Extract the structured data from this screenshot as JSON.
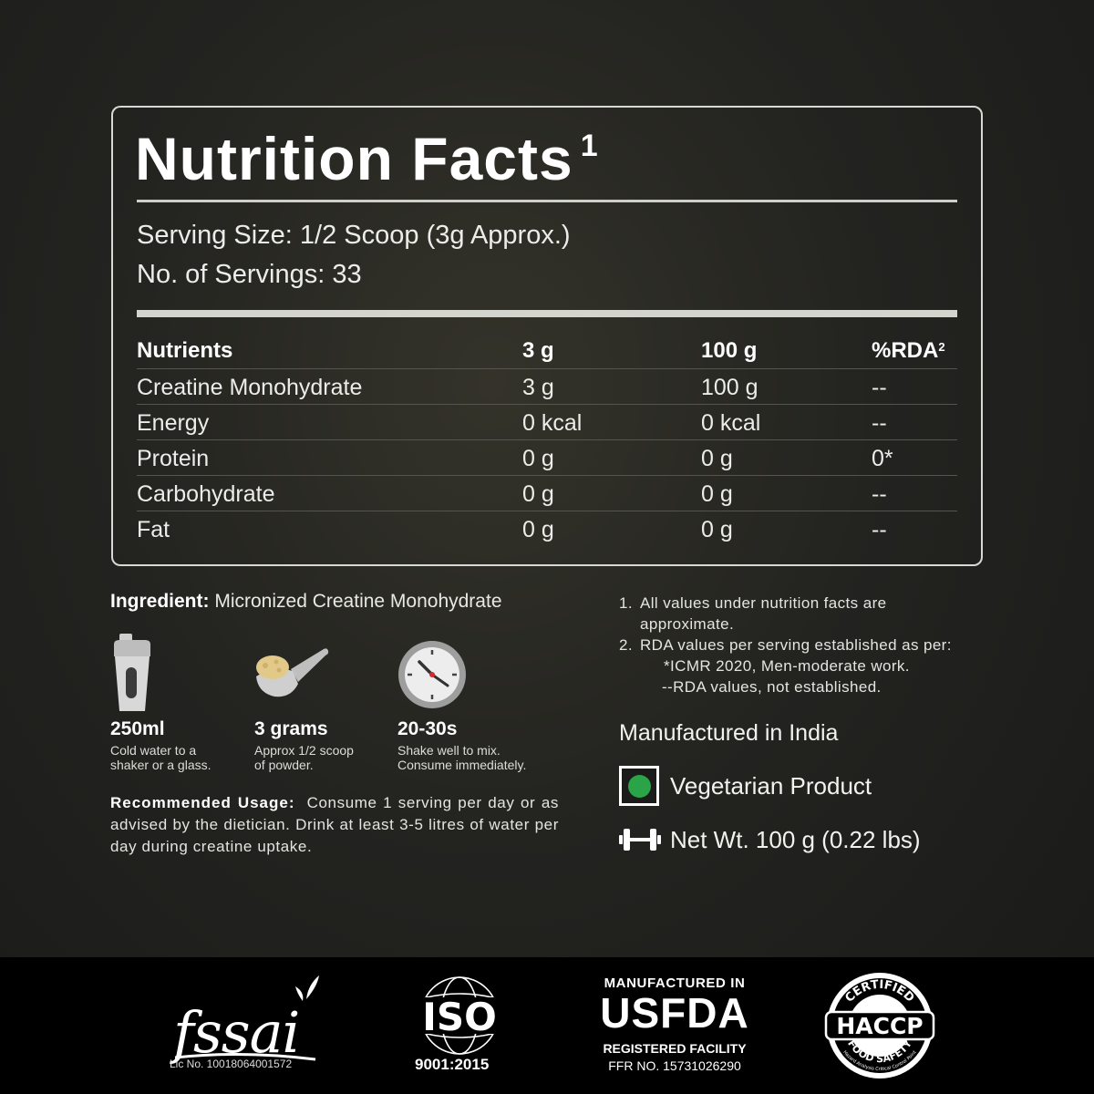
{
  "nutrition": {
    "title": "Nutrition Facts",
    "title_sup": "1",
    "serving_size": "Serving Size: 1/2 Scoop (3g Approx.)",
    "servings": "No. of Servings: 33",
    "headers": {
      "nutrients": "Nutrients",
      "per_serving": "3 g",
      "per_100": "100 g",
      "rda": "%RDA",
      "rda_sup": "2"
    },
    "rows": [
      {
        "name": "Creatine Monohydrate",
        "per_serving": "3 g",
        "per_100": "100 g",
        "rda": "--"
      },
      {
        "name": "Energy",
        "per_serving": "0 kcal",
        "per_100": "0 kcal",
        "rda": "--"
      },
      {
        "name": "Protein",
        "per_serving": "0 g",
        "per_100": "0 g",
        "rda": "0*"
      },
      {
        "name": "Carbohydrate",
        "per_serving": "0 g",
        "per_100": "0 g",
        "rda": "--"
      },
      {
        "name": "Fat",
        "per_serving": "0 g",
        "per_100": "0 g",
        "rda": "--"
      }
    ]
  },
  "ingredient": {
    "label": "Ingredient:",
    "value": "Micronized Creatine Monohydrate"
  },
  "steps": [
    {
      "icon": "shaker-icon",
      "big": "250ml",
      "line1": "Cold water to a",
      "line2": "shaker or a glass."
    },
    {
      "icon": "scoop-icon",
      "big": "3 grams",
      "line1": "Approx 1/2 scoop",
      "line2": "of powder."
    },
    {
      "icon": "clock-icon",
      "big": "20-30s",
      "line1": "Shake well to mix.",
      "line2": "Consume immediately."
    }
  ],
  "usage": {
    "label": "Recommended Usage:",
    "text": "Consume 1 serving per day or as advised by the dietician. Drink at least 3-5 litres of water per day during creatine uptake."
  },
  "notes": {
    "n1_num": "1.",
    "n1_line1": "All values under nutrition facts are",
    "n1_line2": "approximate.",
    "n2_num": "2.",
    "n2_line1": "RDA values per serving established as per:",
    "n2_line2": "*ICMR 2020, Men-moderate work.",
    "n2_line3": "--RDA values, not established."
  },
  "manufactured": "Manufactured in India",
  "vegetarian": "Vegetarian Product",
  "net_weight": "Net Wt. 100 g (0.22 lbs)",
  "footer": {
    "fssai_logo": "fssai",
    "fssai_lic": "Lic No. 10018064001572",
    "iso_logo": "ISO",
    "iso_number": "9001:2015",
    "usfda_line1": "MANUFACTURED IN",
    "usfda_line2": "USFDA",
    "usfda_line3": "REGISTERED FACILITY",
    "usfda_line4": "FFR NO. 15731026290",
    "haccp_logo": "HACCP",
    "haccp_top": "CERTIFIED",
    "haccp_bottom": "FOOD SAFETY",
    "haccp_fine": "Hazard Analysis Critical Control Point"
  },
  "colors": {
    "veg_green": "#2ba348",
    "panel_border": "#d9d9d4",
    "footer_bg": "#000000"
  }
}
